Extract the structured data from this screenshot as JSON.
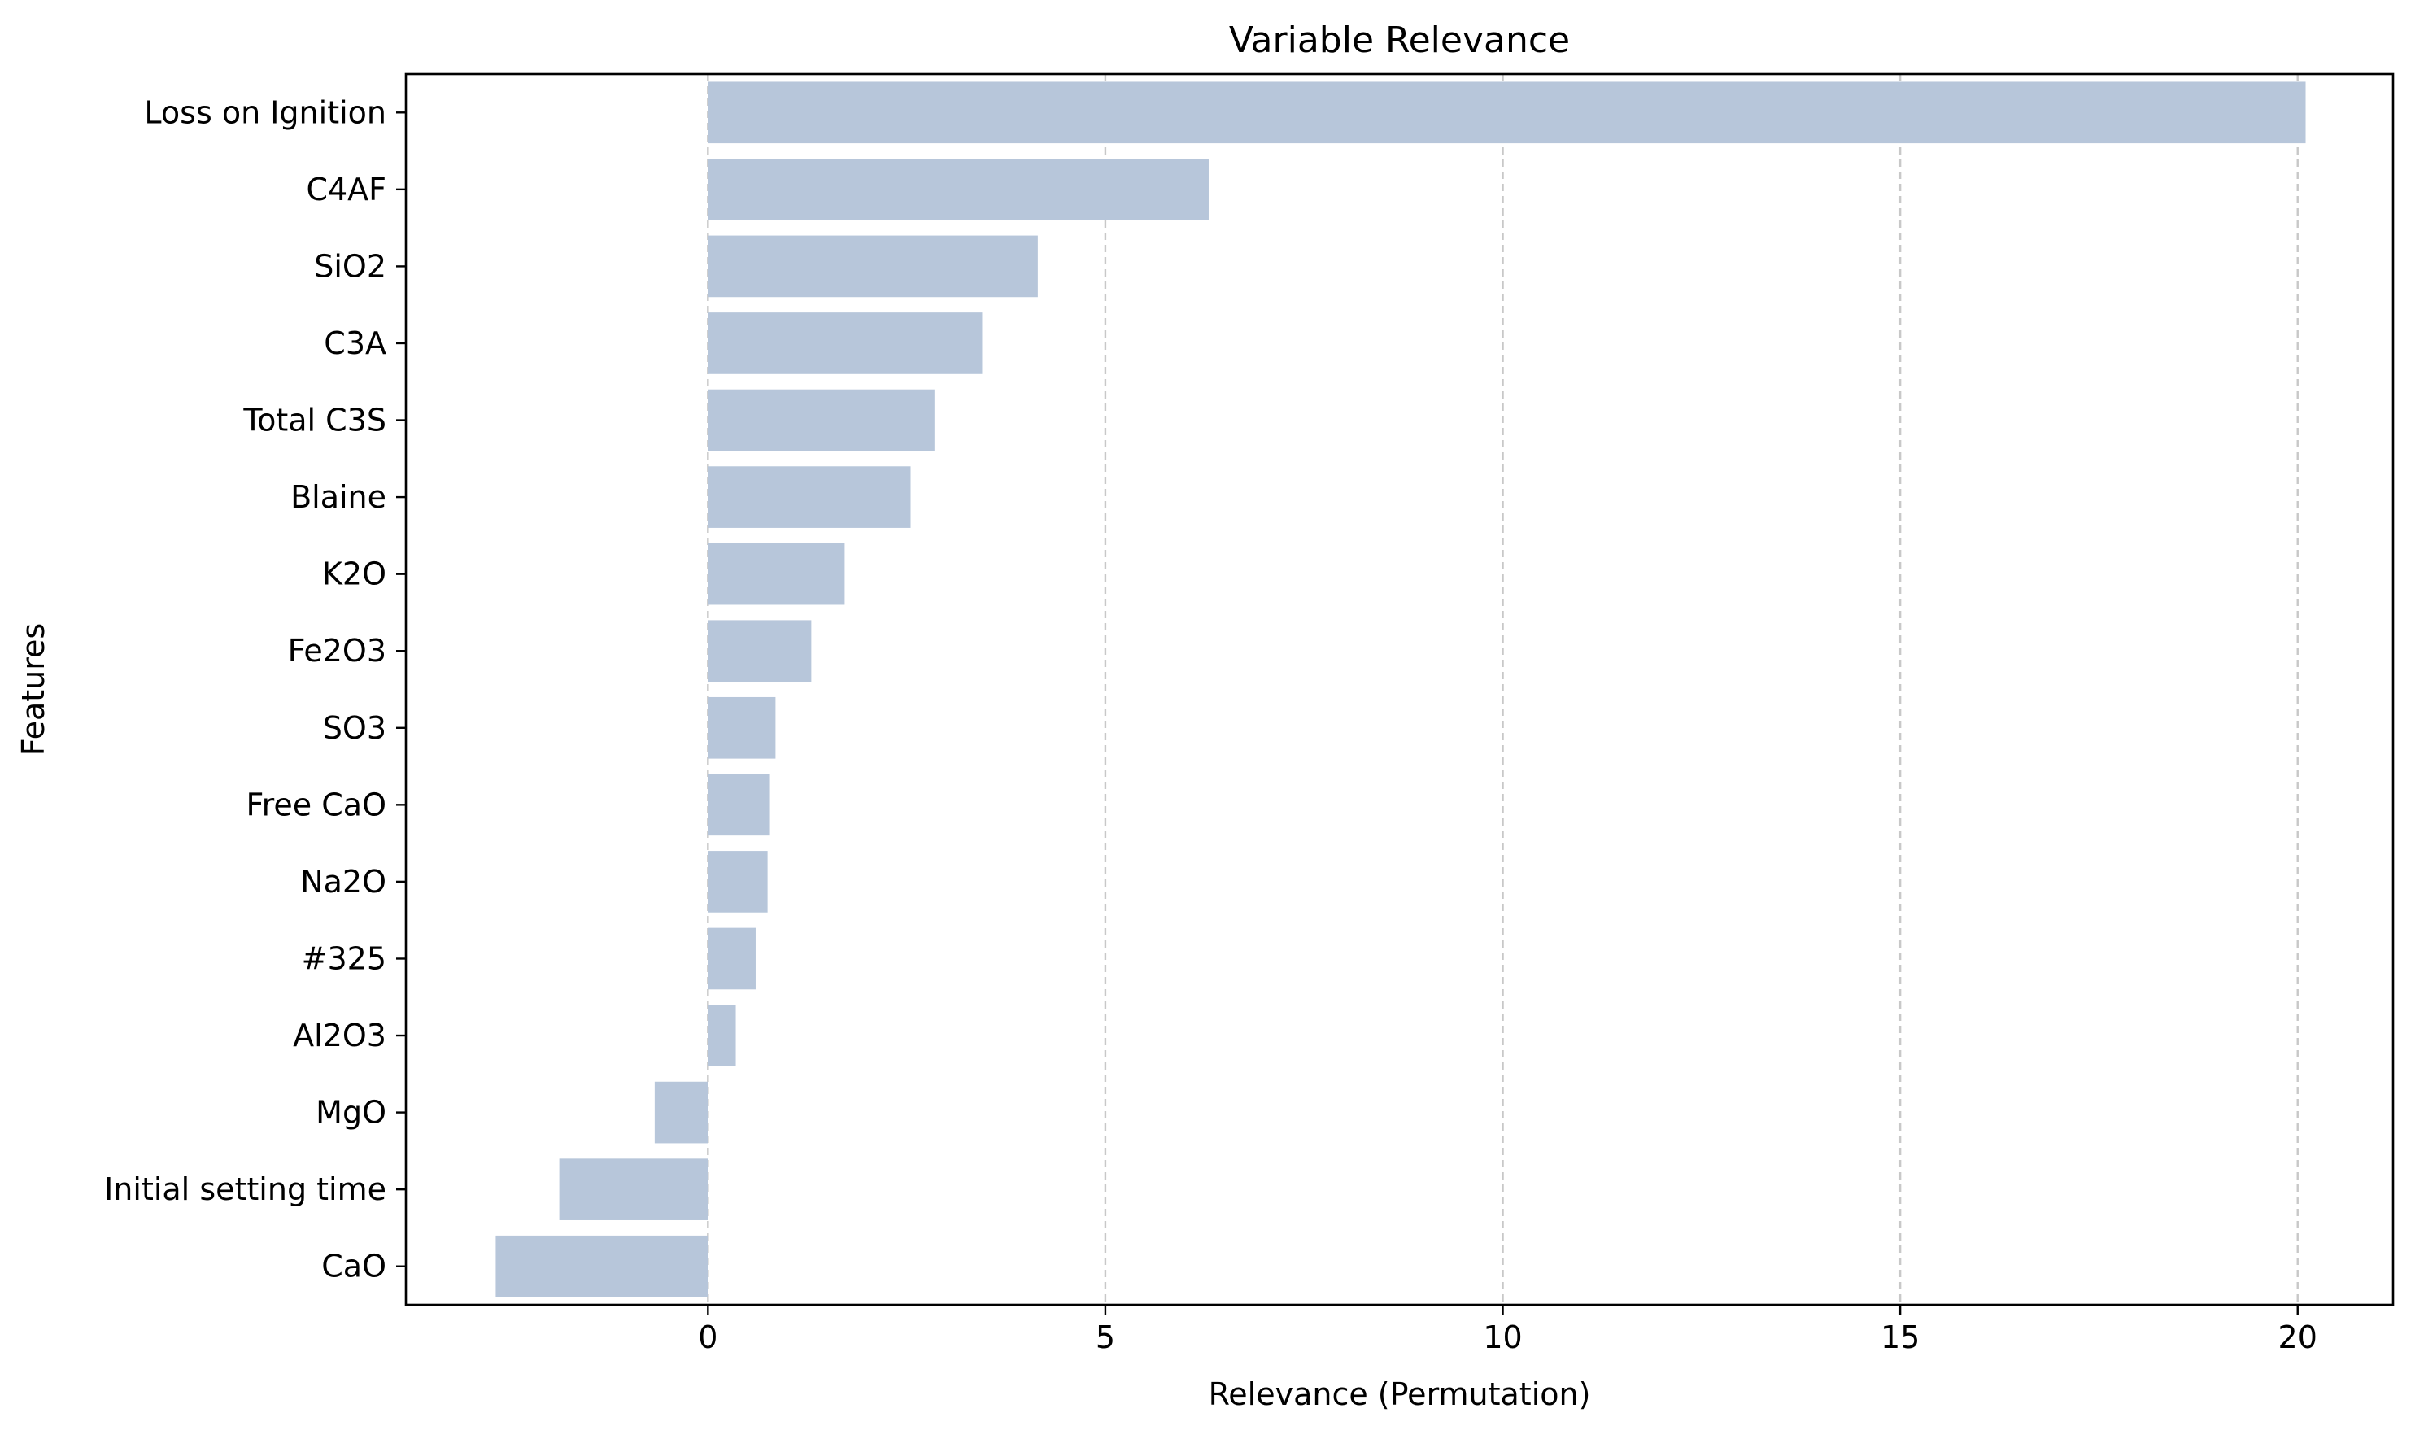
{
  "chart_data": {
    "type": "bar",
    "orientation": "horizontal",
    "title": "Variable Relevance",
    "xlabel": "Relevance (Permutation)",
    "ylabel": "Features",
    "categories": [
      "Loss on Ignition",
      "C4AF",
      "SiO2",
      "C3A",
      "Total C3S",
      "Blaine",
      "K2O",
      "Fe2O3",
      "SO3",
      "Free CaO",
      "Na2O",
      "#325",
      "Al2O3",
      "MgO",
      "Initial setting time",
      "CaO"
    ],
    "values": [
      20.1,
      6.3,
      4.15,
      3.45,
      2.85,
      2.55,
      1.72,
      1.3,
      0.85,
      0.78,
      0.75,
      0.6,
      0.35,
      -0.67,
      -1.87,
      -2.67
    ],
    "xlim": [
      -3.8,
      21.2
    ],
    "xticks": [
      0,
      5,
      10,
      15,
      20
    ],
    "xtick_labels": [
      "0",
      "5",
      "10",
      "15",
      "20"
    ],
    "grid": "x, dashed",
    "bar_color": "#b7c6da",
    "grid_color": "#c8c8c8",
    "legend": "none"
  }
}
